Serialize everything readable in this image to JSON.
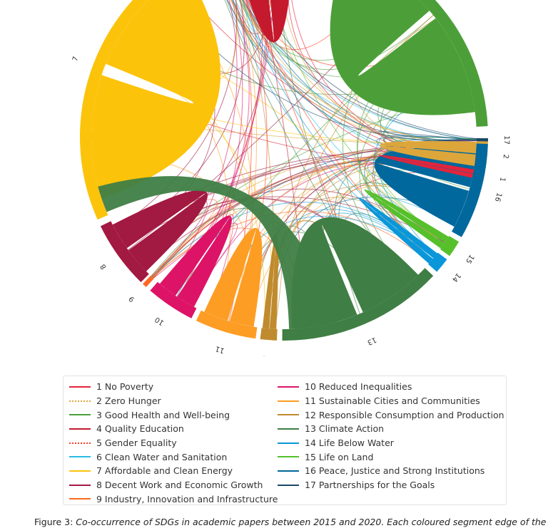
{
  "chart_data": {
    "type": "chord",
    "segments": [
      {
        "id": "1",
        "name": "No Poverty",
        "color": "#e5243b",
        "start": 9.6,
        "end": 12.5
      },
      {
        "id": "2",
        "name": "Zero Hunger",
        "color": "#dda63a",
        "start": 1.0,
        "end": 9.2
      },
      {
        "id": "3",
        "name": "Good Health and Well-being",
        "color": "#4c9f38",
        "start": -76,
        "end": -3
      },
      {
        "id": "4",
        "name": "Quality Education",
        "color": "#c5192d",
        "start": -106,
        "end": -86
      },
      {
        "id": "5",
        "name": "Gender Equality",
        "color": "#ff3a21",
        "start": -107,
        "end": -106.3
      },
      {
        "id": "6",
        "name": "Clean Water and Sanitation",
        "color": "#26bde2",
        "start": -114,
        "end": -107.5
      },
      {
        "id": "7",
        "name": "Affordable and Clean Energy",
        "color": "#fcc30b",
        "start": -204,
        "end": -115
      },
      {
        "id": "8",
        "name": "Decent Work and Economic Growth",
        "color": "#a21942",
        "start": -225.5,
        "end": -206
      },
      {
        "id": "9",
        "name": "Industry, Innovation and Infrastructure",
        "color": "#fd6925",
        "start": -227.5,
        "end": -226.2
      },
      {
        "id": "10",
        "name": "Reduced Inequalities",
        "color": "#dd1367",
        "start": -243,
        "end": -229
      },
      {
        "id": "11",
        "name": "Sustainable Cities and Communities",
        "color": "#fd9d24",
        "start": -262,
        "end": -244.5
      },
      {
        "id": "12",
        "name": "Responsible Consumption and Production",
        "color": "#bf8b2e",
        "start": -268,
        "end": -263.3
      },
      {
        "id": "13",
        "name": "Climate Action",
        "color": "#3f7e44",
        "start": -317,
        "end": -269.5
      },
      {
        "id": "14",
        "name": "Life Below Water",
        "color": "#0a97d9",
        "start": -323,
        "end": -318.5
      },
      {
        "id": "15",
        "name": "Life on Land",
        "color": "#56c02b",
        "start": -329,
        "end": -324.2
      },
      {
        "id": "16",
        "name": "Peace, Justice and Strong Institutions",
        "color": "#00689d",
        "start": -358,
        "end": -330.5
      },
      {
        "id": "17",
        "name": "Partnerships for the Goals",
        "color": "#19486a",
        "start": -359.6,
        "end": -358.7
      }
    ],
    "major_ribbons": [
      {
        "from": "3",
        "to": "3"
      },
      {
        "from": "4",
        "to": "4"
      },
      {
        "from": "7",
        "to": "7"
      },
      {
        "from": "13",
        "to": "13"
      },
      {
        "from": "16",
        "to": "16"
      },
      {
        "from": "11",
        "to": "11"
      },
      {
        "from": "10",
        "to": "10"
      },
      {
        "from": "8",
        "to": "8"
      },
      {
        "from": "2",
        "to": "2"
      },
      {
        "from": "1",
        "to": "1"
      },
      {
        "from": "12",
        "to": "12"
      },
      {
        "from": "15",
        "to": "15"
      },
      {
        "from": "14",
        "to": "14"
      },
      {
        "from": "7",
        "to": "13",
        "wide": true
      }
    ],
    "legend": {
      "left": [
        {
          "label": "1 No Poverty",
          "color": "#e5243b",
          "style": "solid"
        },
        {
          "label": "2 Zero Hunger",
          "color": "#dda63a",
          "style": "dotted"
        },
        {
          "label": "3 Good Health and Well-being",
          "color": "#4c9f38",
          "style": "solid"
        },
        {
          "label": "4 Quality Education",
          "color": "#c5192d",
          "style": "solid"
        },
        {
          "label": "5 Gender Equality",
          "color": "#ff3a21",
          "style": "dotted"
        },
        {
          "label": "6 Clean Water and Sanitation",
          "color": "#26bde2",
          "style": "solid"
        },
        {
          "label": "7 Affordable and Clean Energy",
          "color": "#fcc30b",
          "style": "solid"
        },
        {
          "label": "8 Decent Work and Economic Growth",
          "color": "#a21942",
          "style": "solid"
        },
        {
          "label": "9 Industry, Innovation and Infrastructure",
          "color": "#fd6925",
          "style": "solid"
        }
      ],
      "right": [
        {
          "label": "10 Reduced Inequalities",
          "color": "#dd1367",
          "style": "solid"
        },
        {
          "label": "11 Sustainable Cities and Communities",
          "color": "#fd9d24",
          "style": "solid"
        },
        {
          "label": "12 Responsible Consumption and Production",
          "color": "#bf8b2e",
          "style": "solid"
        },
        {
          "label": "13 Climate Action",
          "color": "#3f7e44",
          "style": "solid"
        },
        {
          "label": "14 Life Below Water",
          "color": "#0a97d9",
          "style": "solid"
        },
        {
          "label": "15 Life on Land",
          "color": "#56c02b",
          "style": "solid"
        },
        {
          "label": "16 Peace, Justice and Strong Institutions",
          "color": "#00689d",
          "style": "solid"
        },
        {
          "label": "17 Partnerships for the Goals",
          "color": "#19486a",
          "style": "solid"
        }
      ]
    },
    "caption": {
      "prefix": "Figure 3:",
      "text": "Co-occurrence of SDGs in academic papers between 2015 and 2020. Each coloured segment edge of the"
    }
  }
}
